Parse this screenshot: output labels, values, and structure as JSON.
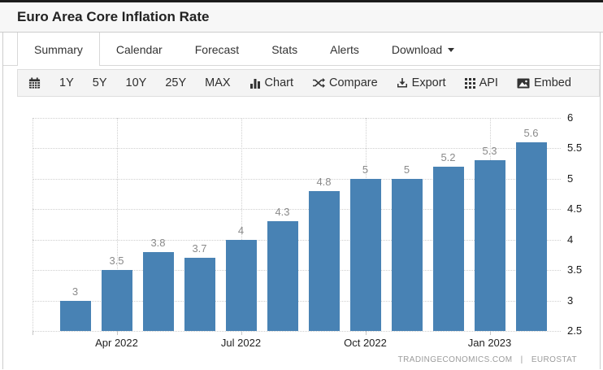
{
  "header": {
    "title": "Euro Area Core Inflation Rate"
  },
  "tabs": {
    "items": [
      {
        "label": "Summary",
        "active": true
      },
      {
        "label": "Calendar",
        "active": false
      },
      {
        "label": "Forecast",
        "active": false
      },
      {
        "label": "Stats",
        "active": false
      },
      {
        "label": "Alerts",
        "active": false
      },
      {
        "label": "Download",
        "active": false,
        "has_caret": true
      }
    ]
  },
  "toolbar": {
    "calendar_button_icon": "calendar-icon",
    "ranges": [
      "1Y",
      "5Y",
      "10Y",
      "25Y",
      "MAX"
    ],
    "actions": [
      {
        "icon": "bar-chart-icon",
        "label": "Chart"
      },
      {
        "icon": "compare-shuffle-icon",
        "label": "Compare"
      },
      {
        "icon": "export-download-icon",
        "label": "Export"
      },
      {
        "icon": "api-grid-icon",
        "label": "API"
      },
      {
        "icon": "embed-image-icon",
        "label": "Embed"
      }
    ]
  },
  "chart_data": {
    "type": "bar",
    "title": "Euro Area Core Inflation Rate",
    "values": [
      3,
      3.5,
      3.8,
      3.7,
      4,
      4.3,
      4.8,
      5,
      5,
      5.2,
      5.3,
      5.6
    ],
    "value_labels": [
      "3",
      "3.5",
      "3.8",
      "3.7",
      "4",
      "4.3",
      "4.8",
      "5",
      "5",
      "5.2",
      "5.3",
      "5.6"
    ],
    "x_ticks": [
      {
        "index": 1,
        "label": "Apr 2022"
      },
      {
        "index": 4,
        "label": "Jul 2022"
      },
      {
        "index": 7,
        "label": "Oct 2022"
      },
      {
        "index": 10,
        "label": "Jan 2023"
      }
    ],
    "y_ticks": [
      2.5,
      3,
      3.5,
      4,
      4.5,
      5,
      5.5,
      6
    ],
    "ylim": [
      2.5,
      6
    ],
    "y_axis_side": "right",
    "grid": "dotted",
    "legend": "none",
    "bar_color": "#4882b4",
    "value_label_color": "#8a8a8a"
  },
  "attribution": {
    "left": "TRADINGECONOMICS.COM",
    "separator": "|",
    "right": "EUROSTAT"
  },
  "colors": {
    "bar": "#4882b4",
    "grid": "#cfcfcf",
    "axis_text": "#1a1a1a",
    "toolbar_bg": "#f4f4f4",
    "header_bg": "#f7f7f7"
  }
}
